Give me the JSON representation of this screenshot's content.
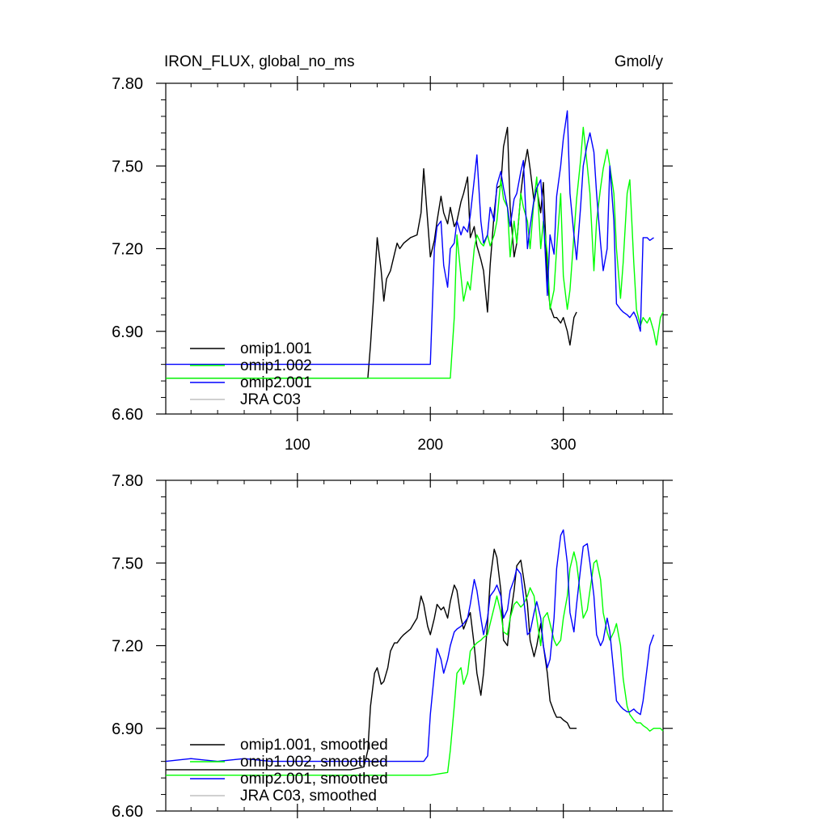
{
  "chart_data": [
    {
      "type": "line",
      "title_left": "IRON_FLUX, global_no_ms",
      "title_right": "Gmol/y",
      "xlim": [
        1,
        375
      ],
      "ylim": [
        6.6,
        7.8
      ],
      "xticks": [
        100,
        200,
        300
      ],
      "xtick_labels": [
        "100",
        "200",
        "300"
      ],
      "yticks": [
        6.6,
        6.9,
        7.2,
        7.5,
        7.8
      ],
      "ytick_labels": [
        "6.60",
        "6.90",
        "7.20",
        "7.50",
        "7.80"
      ],
      "legend": [
        "omip1.001",
        "omip1.002",
        "omip2.001",
        "JRA C03"
      ],
      "series": [
        {
          "name": "omip1.001",
          "color": "#000000",
          "x": [
            1,
            20,
            40,
            60,
            80,
            100,
            120,
            140,
            150,
            153,
            155,
            157,
            160,
            163,
            165,
            167,
            170,
            173,
            175,
            177,
            180,
            185,
            190,
            193,
            195,
            198,
            200,
            203,
            205,
            208,
            210,
            213,
            215,
            218,
            220,
            223,
            225,
            228,
            230,
            233,
            235,
            238,
            240,
            243,
            245,
            248,
            250,
            253,
            255,
            258,
            260,
            263,
            265,
            268,
            270,
            273,
            275,
            278,
            280,
            283,
            285,
            288,
            290,
            293,
            295,
            298,
            300,
            303,
            305,
            308,
            310
          ],
          "values": [
            6.73,
            6.73,
            6.73,
            6.73,
            6.73,
            6.73,
            6.73,
            6.73,
            6.73,
            6.73,
            6.85,
            7.0,
            7.24,
            7.12,
            7.01,
            7.09,
            7.12,
            7.18,
            7.22,
            7.2,
            7.22,
            7.24,
            7.25,
            7.33,
            7.49,
            7.3,
            7.17,
            7.23,
            7.3,
            7.39,
            7.33,
            7.29,
            7.35,
            7.28,
            7.3,
            7.37,
            7.4,
            7.46,
            7.24,
            7.28,
            7.21,
            7.16,
            7.12,
            6.97,
            7.14,
            7.33,
            7.42,
            7.43,
            7.57,
            7.64,
            7.35,
            7.17,
            7.22,
            7.4,
            7.48,
            7.56,
            7.49,
            7.37,
            7.42,
            7.33,
            7.44,
            7.09,
            6.99,
            6.95,
            6.95,
            6.93,
            6.95,
            6.9,
            6.85,
            6.95,
            6.97
          ]
        },
        {
          "name": "omip1.002",
          "color": "#00ff00",
          "x": [
            1,
            20,
            40,
            60,
            80,
            100,
            120,
            140,
            160,
            180,
            200,
            215,
            218,
            220,
            223,
            225,
            228,
            230,
            233,
            235,
            238,
            240,
            243,
            245,
            248,
            250,
            253,
            255,
            258,
            260,
            263,
            265,
            268,
            270,
            273,
            275,
            278,
            280,
            283,
            285,
            288,
            290,
            293,
            295,
            298,
            300,
            303,
            305,
            308,
            310,
            313,
            315,
            318,
            320,
            323,
            325,
            328,
            330,
            333,
            335,
            338,
            340,
            343,
            345,
            348,
            350,
            353,
            355,
            358,
            360,
            363,
            365,
            368,
            370,
            373,
            375
          ],
          "values": [
            6.73,
            6.73,
            6.73,
            6.73,
            6.73,
            6.73,
            6.73,
            6.73,
            6.73,
            6.73,
            6.73,
            6.73,
            6.95,
            7.25,
            7.1,
            7.01,
            7.08,
            7.05,
            7.2,
            7.25,
            7.22,
            7.21,
            7.25,
            7.21,
            7.25,
            7.3,
            7.45,
            7.38,
            7.35,
            7.17,
            7.3,
            7.22,
            7.4,
            7.35,
            7.3,
            7.2,
            7.38,
            7.46,
            7.2,
            7.3,
            7.18,
            6.98,
            7.05,
            7.2,
            7.4,
            7.1,
            6.98,
            7.05,
            7.25,
            7.38,
            7.52,
            7.64,
            7.5,
            7.4,
            7.12,
            7.3,
            7.42,
            7.49,
            7.56,
            7.5,
            7.4,
            7.2,
            7.02,
            7.15,
            7.4,
            7.45,
            7.15,
            6.98,
            6.92,
            6.95,
            6.93,
            6.95,
            6.9,
            6.85,
            6.95,
            6.97
          ]
        },
        {
          "name": "omip2.001",
          "color": "#0000ff",
          "x": [
            1,
            20,
            40,
            60,
            80,
            100,
            120,
            140,
            160,
            180,
            200,
            203,
            205,
            208,
            210,
            213,
            215,
            218,
            220,
            223,
            225,
            228,
            230,
            233,
            235,
            238,
            240,
            243,
            245,
            248,
            250,
            253,
            255,
            258,
            260,
            263,
            265,
            268,
            270,
            273,
            275,
            278,
            280,
            283,
            285,
            288,
            290,
            293,
            295,
            298,
            300,
            303,
            305,
            308,
            310,
            313,
            315,
            318,
            320,
            323,
            325,
            328,
            330,
            333,
            335,
            338,
            340,
            343,
            345,
            348,
            350,
            353,
            355,
            358,
            360,
            363,
            365,
            368
          ],
          "values": [
            6.78,
            6.78,
            6.78,
            6.78,
            6.78,
            6.78,
            6.78,
            6.78,
            6.78,
            6.78,
            6.78,
            7.2,
            7.28,
            7.3,
            7.14,
            7.06,
            7.2,
            7.22,
            7.3,
            7.25,
            7.28,
            7.26,
            7.32,
            7.45,
            7.54,
            7.3,
            7.22,
            7.25,
            7.35,
            7.3,
            7.43,
            7.48,
            7.42,
            7.35,
            7.28,
            7.38,
            7.4,
            7.48,
            7.52,
            7.2,
            7.28,
            7.38,
            7.42,
            7.45,
            7.32,
            7.03,
            7.25,
            7.18,
            7.39,
            7.5,
            7.6,
            7.7,
            7.4,
            7.25,
            7.16,
            7.35,
            7.5,
            7.58,
            7.62,
            7.55,
            7.4,
            7.22,
            7.12,
            7.2,
            7.5,
            7.3,
            7.0,
            6.98,
            6.97,
            6.96,
            6.95,
            6.97,
            6.95,
            6.9,
            7.24,
            7.24,
            7.23,
            7.24
          ]
        },
        {
          "name": "JRA C03",
          "color": "#c0c0c0",
          "x": [],
          "values": []
        }
      ]
    },
    {
      "type": "line",
      "title_left": "",
      "title_right": "",
      "xlim": [
        1,
        375
      ],
      "ylim": [
        6.6,
        7.8
      ],
      "xticks": [
        100,
        200,
        300
      ],
      "xtick_labels": [
        "",
        "",
        ""
      ],
      "yticks": [
        6.6,
        6.9,
        7.2,
        7.5,
        7.8
      ],
      "ytick_labels": [
        "6.60",
        "6.90",
        "7.20",
        "7.50",
        "7.80"
      ],
      "legend": [
        "omip1.001, smoothed",
        "omip1.002, smoothed",
        "omip2.001, smoothed",
        "JRA C03, smoothed"
      ],
      "series": [
        {
          "name": "omip1.001, smoothed",
          "color": "#000000",
          "x": [
            1,
            20,
            40,
            60,
            80,
            100,
            120,
            140,
            150,
            153,
            155,
            158,
            160,
            163,
            165,
            168,
            170,
            173,
            175,
            178,
            180,
            185,
            190,
            193,
            195,
            198,
            200,
            203,
            205,
            208,
            210,
            213,
            215,
            218,
            220,
            223,
            225,
            228,
            230,
            233,
            235,
            238,
            240,
            243,
            245,
            248,
            250,
            253,
            255,
            258,
            260,
            263,
            265,
            268,
            270,
            273,
            275,
            278,
            280,
            283,
            285,
            288,
            290,
            293,
            295,
            298,
            300,
            303,
            305,
            308,
            310
          ],
          "values": [
            6.75,
            6.75,
            6.75,
            6.75,
            6.75,
            6.75,
            6.75,
            6.75,
            6.76,
            6.82,
            6.98,
            7.1,
            7.12,
            7.06,
            7.07,
            7.12,
            7.18,
            7.21,
            7.21,
            7.23,
            7.24,
            7.26,
            7.3,
            7.38,
            7.35,
            7.27,
            7.24,
            7.3,
            7.35,
            7.33,
            7.34,
            7.3,
            7.36,
            7.42,
            7.4,
            7.3,
            7.26,
            7.3,
            7.32,
            7.2,
            7.1,
            7.02,
            7.1,
            7.28,
            7.44,
            7.55,
            7.52,
            7.4,
            7.22,
            7.2,
            7.3,
            7.4,
            7.49,
            7.51,
            7.45,
            7.35,
            7.22,
            7.16,
            7.2,
            7.28,
            7.2,
            7.1,
            7.0,
            6.96,
            6.94,
            6.94,
            6.93,
            6.92,
            6.9,
            6.9,
            6.9
          ]
        },
        {
          "name": "omip1.002, smoothed",
          "color": "#00ff00",
          "x": [
            1,
            20,
            40,
            60,
            80,
            100,
            120,
            140,
            160,
            180,
            200,
            213,
            215,
            218,
            220,
            223,
            225,
            228,
            230,
            233,
            235,
            238,
            240,
            243,
            245,
            248,
            250,
            253,
            255,
            258,
            260,
            263,
            265,
            268,
            270,
            273,
            275,
            278,
            280,
            283,
            285,
            288,
            290,
            293,
            295,
            298,
            300,
            303,
            305,
            308,
            310,
            313,
            315,
            318,
            320,
            323,
            325,
            328,
            330,
            333,
            335,
            338,
            340,
            343,
            345,
            348,
            350,
            353,
            355,
            358,
            360,
            363,
            365,
            368,
            370,
            373,
            375
          ],
          "values": [
            6.73,
            6.73,
            6.73,
            6.73,
            6.73,
            6.73,
            6.73,
            6.73,
            6.73,
            6.73,
            6.73,
            6.74,
            6.82,
            6.98,
            7.1,
            7.12,
            7.06,
            7.1,
            7.18,
            7.2,
            7.21,
            7.22,
            7.23,
            7.24,
            7.28,
            7.34,
            7.38,
            7.32,
            7.25,
            7.24,
            7.3,
            7.35,
            7.36,
            7.34,
            7.35,
            7.38,
            7.41,
            7.38,
            7.3,
            7.2,
            7.3,
            7.32,
            7.28,
            7.22,
            7.2,
            7.22,
            7.3,
            7.38,
            7.48,
            7.54,
            7.5,
            7.38,
            7.3,
            7.33,
            7.4,
            7.5,
            7.51,
            7.44,
            7.32,
            7.25,
            7.22,
            7.25,
            7.28,
            7.2,
            7.08,
            6.98,
            6.95,
            6.93,
            6.92,
            6.92,
            6.91,
            6.9,
            6.89,
            6.9,
            6.9,
            6.9,
            6.89
          ]
        },
        {
          "name": "omip2.001, smoothed",
          "color": "#0000ff",
          "x": [
            1,
            20,
            40,
            60,
            80,
            100,
            120,
            140,
            160,
            180,
            195,
            198,
            200,
            203,
            205,
            208,
            210,
            213,
            215,
            218,
            220,
            223,
            225,
            228,
            230,
            233,
            235,
            238,
            240,
            243,
            245,
            248,
            250,
            253,
            255,
            258,
            260,
            263,
            265,
            268,
            270,
            273,
            275,
            278,
            280,
            283,
            285,
            288,
            290,
            293,
            295,
            298,
            300,
            303,
            305,
            308,
            310,
            313,
            315,
            318,
            320,
            323,
            325,
            328,
            330,
            333,
            335,
            338,
            340,
            343,
            345,
            348,
            350,
            353,
            355,
            358,
            360,
            363,
            365,
            368
          ],
          "values": [
            6.78,
            6.79,
            6.78,
            6.79,
            6.78,
            6.78,
            6.78,
            6.78,
            6.78,
            6.78,
            6.78,
            6.8,
            6.95,
            7.1,
            7.19,
            7.15,
            7.1,
            7.15,
            7.2,
            7.25,
            7.26,
            7.27,
            7.28,
            7.3,
            7.35,
            7.44,
            7.4,
            7.3,
            7.24,
            7.3,
            7.38,
            7.4,
            7.42,
            7.38,
            7.3,
            7.33,
            7.4,
            7.44,
            7.48,
            7.46,
            7.38,
            7.24,
            7.25,
            7.32,
            7.36,
            7.3,
            7.2,
            7.12,
            7.15,
            7.3,
            7.48,
            7.6,
            7.62,
            7.5,
            7.32,
            7.25,
            7.35,
            7.48,
            7.56,
            7.57,
            7.5,
            7.38,
            7.24,
            7.2,
            7.22,
            7.3,
            7.25,
            7.1,
            7.0,
            6.98,
            6.97,
            6.96,
            6.96,
            6.97,
            6.96,
            6.95,
            7.0,
            7.12,
            7.2,
            7.24
          ]
        },
        {
          "name": "JRA C03, smoothed",
          "color": "#c0c0c0",
          "x": [],
          "values": []
        }
      ]
    }
  ]
}
